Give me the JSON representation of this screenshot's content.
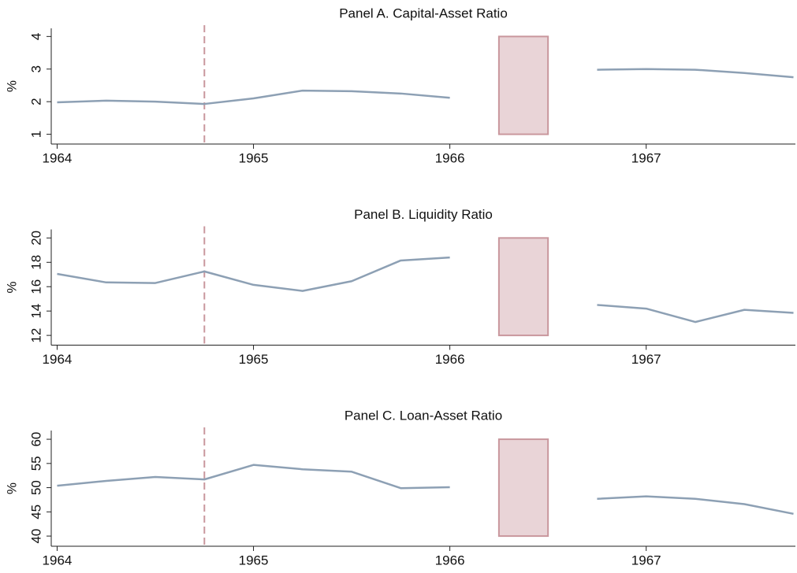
{
  "chart_data": [
    {
      "type": "line",
      "title": "Panel A. Capital-Asset Ratio",
      "y_label": "%",
      "x": [
        1964,
        1964.25,
        1964.5,
        1964.75,
        1965,
        1965.25,
        1965.5,
        1965.75,
        1966,
        1966.25,
        1966.5,
        1966.75,
        1967,
        1967.25,
        1967.5,
        1967.75
      ],
      "series": [
        {
          "color": "#8da0b4",
          "values": [
            1.98,
            2.03,
            2.0,
            1.93,
            2.1,
            2.34,
            2.32,
            2.25,
            2.12,
            null,
            null,
            2.98,
            3.0,
            2.98,
            2.88,
            2.75
          ]
        }
      ],
      "xlim": [
        1963.97,
        1967.76
      ],
      "xticks": [
        1964,
        1965,
        1966,
        1967
      ],
      "ylim": [
        0.7,
        4.25
      ],
      "yticks": [
        1,
        2,
        3,
        4
      ],
      "vline": {
        "x": 1964.75,
        "color": "#c9979d"
      },
      "shaded_region": {
        "x": [
          1966.25,
          1966.5
        ],
        "y": [
          1,
          4
        ],
        "color": "#e9d4d7",
        "edge_color": "#c9979d"
      }
    },
    {
      "type": "line",
      "title": "Panel B. Liquidity Ratio",
      "y_label": "%",
      "x": [
        1964,
        1964.25,
        1964.5,
        1964.75,
        1965,
        1965.25,
        1965.5,
        1965.75,
        1966,
        1966.25,
        1966.5,
        1966.75,
        1967,
        1967.25,
        1967.5,
        1967.75
      ],
      "series": [
        {
          "color": "#8da0b4",
          "values": [
            17.05,
            16.35,
            16.3,
            17.25,
            16.15,
            15.65,
            16.45,
            18.15,
            18.4,
            null,
            null,
            14.5,
            14.2,
            13.1,
            14.1,
            13.85
          ]
        }
      ],
      "xlim": [
        1963.97,
        1967.76
      ],
      "xticks": [
        1964,
        1965,
        1966,
        1967
      ],
      "ylim": [
        11.2,
        20.7
      ],
      "yticks": [
        12,
        14,
        16,
        18,
        20
      ],
      "vline": {
        "x": 1964.75,
        "color": "#c9979d"
      },
      "shaded_region": {
        "x": [
          1966.25,
          1966.5
        ],
        "y": [
          12,
          20
        ],
        "color": "#e9d4d7",
        "edge_color": "#c9979d"
      }
    },
    {
      "type": "line",
      "title": "Panel C. Loan-Asset Ratio",
      "y_label": "%",
      "x": [
        1964,
        1964.25,
        1964.5,
        1964.75,
        1965,
        1965.25,
        1965.5,
        1965.75,
        1966,
        1966.25,
        1966.5,
        1966.75,
        1967,
        1967.25,
        1967.5,
        1967.75
      ],
      "series": [
        {
          "color": "#8da0b4",
          "values": [
            50.4,
            51.4,
            52.2,
            51.7,
            54.7,
            53.8,
            53.3,
            49.9,
            50.1,
            null,
            null,
            47.7,
            48.2,
            47.7,
            46.6,
            44.6
          ]
        }
      ],
      "xlim": [
        1963.97,
        1967.76
      ],
      "xticks": [
        1964,
        1965,
        1966,
        1967
      ],
      "ylim": [
        37.9,
        61.8
      ],
      "yticks": [
        40,
        45,
        50,
        55,
        60
      ],
      "vline": {
        "x": 1964.75,
        "color": "#c9979d"
      },
      "shaded_region": {
        "x": [
          1966.25,
          1966.5
        ],
        "y": [
          40,
          60
        ],
        "color": "#e9d4d7",
        "edge_color": "#c9979d"
      }
    }
  ]
}
